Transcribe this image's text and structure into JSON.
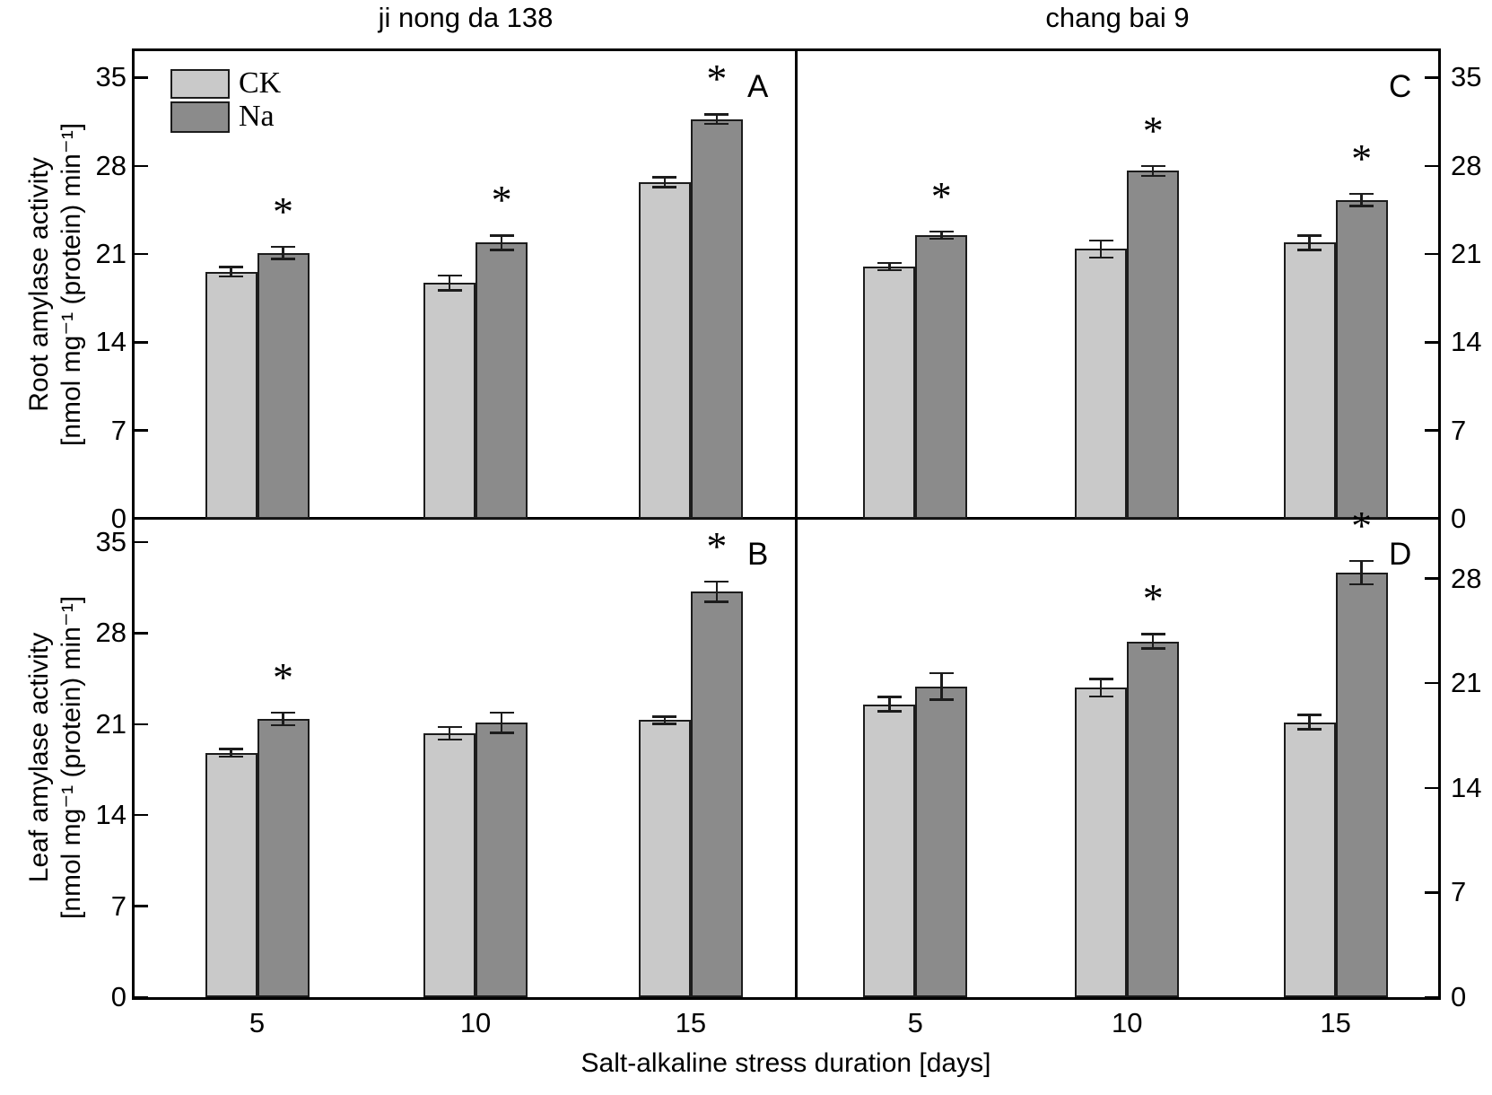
{
  "figure": {
    "column_titles": [
      "ji nong da 138",
      "chang bai 9"
    ],
    "x_axis_title": "Salt-alkaline stress duration [days]",
    "row_y_titles": [
      {
        "line1": "Root amylase activity",
        "line2": "[nmol mg⁻¹ (protein) min⁻¹]"
      },
      {
        "line1": "Leaf amylase activity",
        "line2": "[nmol mg⁻¹ (protein) min⁻¹]"
      }
    ],
    "legend": {
      "ck": "CK",
      "na": "Na"
    },
    "sig_marker": "*",
    "colors": {
      "ck_fill": "#c9c9c9",
      "na_fill": "#8b8b8b",
      "bar_border": "#1c1c1c",
      "frame": "#000000",
      "background": "#ffffff"
    }
  },
  "chart_data": {
    "type": "bar",
    "categories": [
      "5",
      "10",
      "15"
    ],
    "x_unit": "days",
    "value_unit": "nmol mg-1 (protein) min-1",
    "legend_position": "top-left of panel A",
    "grid": false,
    "panels": [
      {
        "id": "A",
        "row": 0,
        "col": 0,
        "measure": "Root amylase activity",
        "variety": "ji nong da 138",
        "axis_side": "left",
        "yticks": [
          0,
          7,
          14,
          21,
          28,
          35
        ],
        "ymax": 37.1,
        "series": [
          {
            "name": "CK",
            "values": [
              19.6,
              18.7,
              26.7
            ],
            "errors": [
              0.4,
              0.6,
              0.4
            ]
          },
          {
            "name": "Na",
            "values": [
              21.1,
              21.9,
              31.7
            ],
            "errors": [
              0.5,
              0.6,
              0.4
            ]
          }
        ],
        "significant_na": [
          true,
          true,
          true
        ]
      },
      {
        "id": "B",
        "row": 1,
        "col": 0,
        "measure": "Leaf amylase activity",
        "variety": "ji nong da 138",
        "axis_side": "left",
        "yticks": [
          0,
          7,
          14,
          21,
          28,
          35
        ],
        "ymax": 36.8,
        "series": [
          {
            "name": "CK",
            "values": [
              18.8,
              20.3,
              21.3
            ],
            "errors": [
              0.3,
              0.5,
              0.3
            ]
          },
          {
            "name": "Na",
            "values": [
              21.4,
              21.1,
              31.2
            ],
            "errors": [
              0.5,
              0.8,
              0.8
            ]
          }
        ],
        "significant_na": [
          true,
          false,
          true
        ]
      },
      {
        "id": "C",
        "row": 0,
        "col": 1,
        "measure": "Root amylase activity",
        "variety": "chang bai 9",
        "axis_side": "right",
        "yticks": [
          0,
          7,
          14,
          21,
          28,
          35
        ],
        "ymax": 37.1,
        "series": [
          {
            "name": "CK",
            "values": [
              20.0,
              21.4,
              21.9
            ],
            "errors": [
              0.3,
              0.7,
              0.6
            ]
          },
          {
            "name": "Na",
            "values": [
              22.5,
              27.6,
              25.3
            ],
            "errors": [
              0.3,
              0.4,
              0.5
            ]
          }
        ],
        "significant_na": [
          true,
          true,
          true
        ]
      },
      {
        "id": "D",
        "row": 1,
        "col": 1,
        "measure": "Leaf amylase activity",
        "variety": "chang bai 9",
        "axis_side": "right",
        "yticks": [
          0,
          7,
          14,
          21,
          28
        ],
        "ymax": 32.0,
        "series": [
          {
            "name": "CK",
            "values": [
              19.6,
              20.7,
              18.4
            ],
            "errors": [
              0.5,
              0.6,
              0.5
            ]
          },
          {
            "name": "Na",
            "values": [
              20.8,
              23.8,
              28.4
            ],
            "errors": [
              0.9,
              0.5,
              0.8
            ]
          }
        ],
        "significant_na": [
          false,
          true,
          true
        ]
      }
    ]
  }
}
